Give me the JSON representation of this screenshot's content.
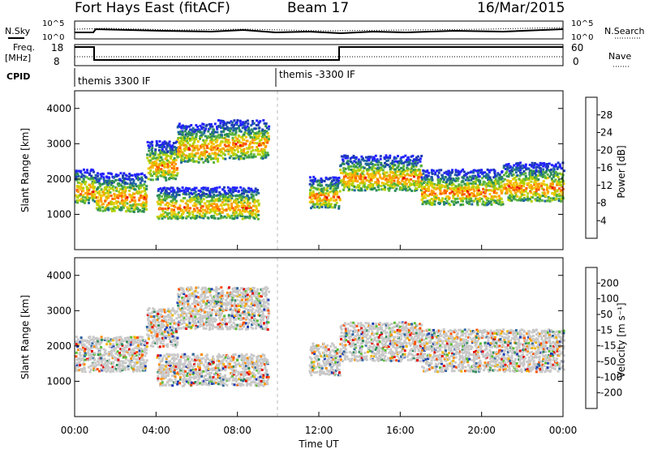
{
  "header": {
    "title": "Fort Hays East (fitACF)",
    "beam": "Beam 17",
    "date": "16/Mar/2015"
  },
  "top_panels": {
    "nsky_label": "N.Sky",
    "nsky_ticks": [
      "10^5",
      "10^0"
    ],
    "nsearch_label": "N.Search",
    "nsearch_ticks": [
      "10^5",
      "10^0"
    ],
    "freq_label": "Freq.",
    "freq_unit": "[MHz]",
    "freq_ticks": [
      "18",
      "8"
    ],
    "nave_label": "Nave",
    "nave_ticks": [
      "60",
      "0"
    ],
    "cpid_label": "CPID",
    "cpid_segments": [
      "themis 3300 IF",
      "themis -3300 IF"
    ]
  },
  "chart_data": [
    {
      "type": "heatmap",
      "name": "power",
      "ylabel": "Slant Range [km]",
      "yticks": [
        1000,
        2000,
        3000,
        4000
      ],
      "ylim": [
        0,
        4500
      ],
      "xlim": [
        0,
        24
      ],
      "colorbar_label": "Power [dB]",
      "colorbar_ticks": [
        "28",
        "24",
        "20",
        "16",
        "12",
        "8",
        "4"
      ],
      "colorbar_colors": [
        "#e40000",
        "#ff5a00",
        "#ff9d00",
        "#f0c800",
        "#b4d200",
        "#5ab43c",
        "#2d8c5a",
        "#1e64a0",
        "#1e3cb4",
        "#2323ff"
      ],
      "bands": [
        {
          "x0": 0.0,
          "x1": 1.0,
          "y0": 1350,
          "y1": 2300
        },
        {
          "x0": 1.0,
          "x1": 3.5,
          "y0": 1100,
          "y1": 2200
        },
        {
          "x0": 3.5,
          "x1": 5.0,
          "y0": 2000,
          "y1": 3100
        },
        {
          "x0": 5.0,
          "x1": 7.0,
          "y0": 2500,
          "y1": 3600
        },
        {
          "x0": 7.0,
          "x1": 9.5,
          "y0": 2600,
          "y1": 3700
        },
        {
          "x0": 4.0,
          "x1": 9.0,
          "y0": 900,
          "y1": 1800
        },
        {
          "x0": 11.5,
          "x1": 13.0,
          "y0": 1200,
          "y1": 2100
        },
        {
          "x0": 13.0,
          "x1": 17.0,
          "y0": 1700,
          "y1": 2700
        },
        {
          "x0": 17.0,
          "x1": 21.0,
          "y0": 1300,
          "y1": 2300
        },
        {
          "x0": 21.0,
          "x1": 24.0,
          "y0": 1400,
          "y1": 2500
        }
      ]
    },
    {
      "type": "heatmap",
      "name": "velocity",
      "xlabel": "Time UT",
      "xticks": [
        "00:00",
        "04:00",
        "08:00",
        "12:00",
        "16:00",
        "20:00",
        "00:00"
      ],
      "xtick_values": [
        0,
        4,
        8,
        12,
        16,
        20,
        24
      ],
      "ylabel": "Slant Range [km]",
      "yticks": [
        1000,
        2000,
        3000,
        4000
      ],
      "ylim": [
        0,
        4500
      ],
      "xlim": [
        0,
        24
      ],
      "colorbar_label": "Velocity [m s⁻¹]",
      "colorbar_ticks": [
        "200",
        "100",
        "50",
        "15",
        "-15",
        "-50",
        "-100",
        "-200"
      ],
      "colorbar_colors": [
        "#1e3cb4",
        "#2d64a0",
        "#2d8c5a",
        "#5abe32",
        "#c8c8c8",
        "#f0b400",
        "#ff8c00",
        "#ff5000",
        "#e40000"
      ],
      "bands": [
        {
          "x0": 0.0,
          "x1": 3.5,
          "y0": 1300,
          "y1": 2300
        },
        {
          "x0": 3.5,
          "x1": 5.0,
          "y0": 2000,
          "y1": 3100
        },
        {
          "x0": 5.0,
          "x1": 9.5,
          "y0": 2500,
          "y1": 3700
        },
        {
          "x0": 4.0,
          "x1": 9.5,
          "y0": 900,
          "y1": 1800
        },
        {
          "x0": 11.5,
          "x1": 13.0,
          "y0": 1200,
          "y1": 2100
        },
        {
          "x0": 13.0,
          "x1": 17.0,
          "y0": 1600,
          "y1": 2700
        },
        {
          "x0": 17.0,
          "x1": 24.0,
          "y0": 1300,
          "y1": 2500
        }
      ]
    }
  ]
}
